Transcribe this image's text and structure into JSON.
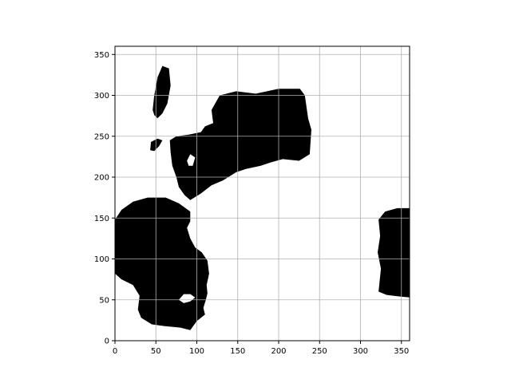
{
  "chart_data": {
    "type": "heatmap",
    "title": "",
    "xlabel": "",
    "ylabel": "",
    "xlim": [
      0,
      360
    ],
    "ylim": [
      0,
      360
    ],
    "xticks": [
      0,
      50,
      100,
      150,
      200,
      250,
      300,
      350
    ],
    "yticks": [
      0,
      50,
      100,
      150,
      200,
      250,
      300,
      350
    ],
    "grid": true,
    "colormap": {
      "masked": "#000000",
      "unmasked": "#ffffff"
    },
    "masked_regions": [
      {
        "name": "lower-left-mass",
        "polygon": [
          [
            0,
            82
          ],
          [
            0,
            148
          ],
          [
            8,
            160
          ],
          [
            22,
            170
          ],
          [
            40,
            175
          ],
          [
            62,
            175
          ],
          [
            78,
            168
          ],
          [
            92,
            158
          ],
          [
            92,
            146
          ],
          [
            88,
            138
          ],
          [
            92,
            125
          ],
          [
            98,
            114
          ],
          [
            106,
            108
          ],
          [
            113,
            98
          ],
          [
            115,
            82
          ],
          [
            112,
            68
          ],
          [
            113,
            58
          ],
          [
            111,
            50
          ],
          [
            108,
            40
          ],
          [
            110,
            32
          ],
          [
            100,
            24
          ],
          [
            92,
            13
          ],
          [
            80,
            16
          ],
          [
            60,
            18
          ],
          [
            45,
            20
          ],
          [
            32,
            28
          ],
          [
            28,
            38
          ],
          [
            30,
            55
          ],
          [
            22,
            68
          ],
          [
            8,
            75
          ]
        ]
      },
      {
        "name": "central-mass",
        "polygon": [
          [
            67,
            245
          ],
          [
            75,
            250
          ],
          [
            90,
            252
          ],
          [
            105,
            255
          ],
          [
            110,
            262
          ],
          [
            120,
            266
          ],
          [
            118,
            282
          ],
          [
            128,
            300
          ],
          [
            148,
            305
          ],
          [
            172,
            302
          ],
          [
            200,
            308
          ],
          [
            226,
            308
          ],
          [
            232,
            300
          ],
          [
            236,
            272
          ],
          [
            240,
            258
          ],
          [
            238,
            228
          ],
          [
            225,
            220
          ],
          [
            205,
            222
          ],
          [
            190,
            218
          ],
          [
            178,
            214
          ],
          [
            160,
            210
          ],
          [
            148,
            206
          ],
          [
            132,
            196
          ],
          [
            118,
            190
          ],
          [
            105,
            180
          ],
          [
            92,
            172
          ],
          [
            85,
            178
          ],
          [
            78,
            188
          ],
          [
            75,
            200
          ],
          [
            70,
            214
          ],
          [
            68,
            230
          ]
        ]
      },
      {
        "name": "upper-left-strip",
        "polygon": [
          [
            46,
            282
          ],
          [
            48,
            300
          ],
          [
            52,
            322
          ],
          [
            58,
            336
          ],
          [
            66,
            333
          ],
          [
            68,
            312
          ],
          [
            64,
            290
          ],
          [
            58,
            278
          ],
          [
            52,
            272
          ],
          [
            48,
            276
          ]
        ]
      },
      {
        "name": "right-mass",
        "polygon": [
          [
            322,
            60
          ],
          [
            325,
            88
          ],
          [
            321,
            108
          ],
          [
            324,
            128
          ],
          [
            322,
            148
          ],
          [
            330,
            158
          ],
          [
            345,
            162
          ],
          [
            360,
            162
          ],
          [
            360,
            53
          ],
          [
            348,
            54
          ],
          [
            332,
            56
          ]
        ]
      },
      {
        "name": "tiny-notch",
        "polygon": [
          [
            43,
            233
          ],
          [
            44,
            243
          ],
          [
            52,
            247
          ],
          [
            58,
            245
          ],
          [
            54,
            238
          ],
          [
            48,
            232
          ]
        ]
      }
    ],
    "holes": [
      {
        "name": "lower-left-hole",
        "polygon": [
          [
            78,
            50
          ],
          [
            84,
            57
          ],
          [
            92,
            57
          ],
          [
            98,
            53
          ],
          [
            92,
            48
          ],
          [
            84,
            46
          ]
        ]
      },
      {
        "name": "central-hole",
        "polygon": [
          [
            88,
            220
          ],
          [
            92,
            228
          ],
          [
            98,
            224
          ],
          [
            95,
            214
          ],
          [
            90,
            214
          ]
        ]
      }
    ]
  }
}
